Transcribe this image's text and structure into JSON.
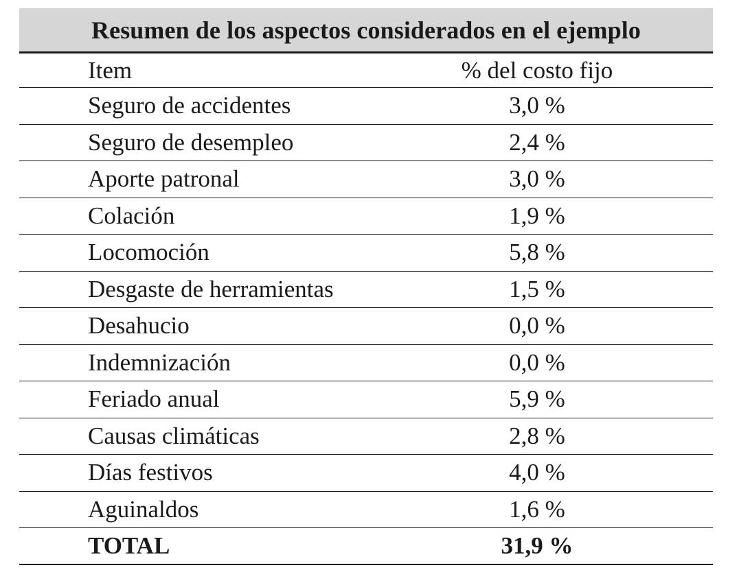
{
  "table": {
    "title": "Resumen de los aspectos considerados en el ejemplo",
    "columns": [
      "Item",
      "% del costo fijo"
    ],
    "rows": [
      {
        "item": "Seguro de accidentes",
        "pct": "3,0 %"
      },
      {
        "item": "Seguro de desempleo",
        "pct": "2,4 %"
      },
      {
        "item": "Aporte patronal",
        "pct": "3,0 %"
      },
      {
        "item": "Colación",
        "pct": "1,9 %"
      },
      {
        "item": "Locomoción",
        "pct": "5,8 %"
      },
      {
        "item": "Desgaste de herramientas",
        "pct": "1,5 %"
      },
      {
        "item": "Desahucio",
        "pct": "0,0 %"
      },
      {
        "item": "Indemnización",
        "pct": "0,0 %"
      },
      {
        "item": "Feriado anual",
        "pct": "5,9 %"
      },
      {
        "item": "Causas climáticas",
        "pct": "2,8 %"
      },
      {
        "item": "Días festivos",
        "pct": "4,0 %"
      },
      {
        "item": "Aguinaldos",
        "pct": "1,6 %"
      }
    ],
    "total": {
      "item": "TOTAL",
      "pct": "31,9 %"
    }
  }
}
